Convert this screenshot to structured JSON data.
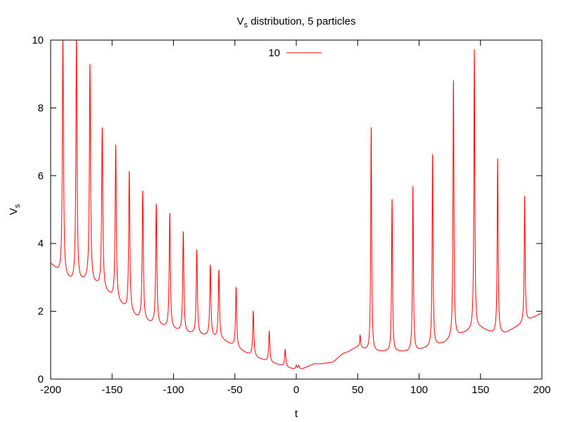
{
  "chart_data": {
    "type": "line",
    "title": {
      "main": "V",
      "sub": "s",
      "rest": " distribution, 5 particles"
    },
    "xlabel": "t",
    "ylabel": {
      "main": "V",
      "sub": "s"
    },
    "xlim": [
      -200,
      200
    ],
    "ylim": [
      0,
      10
    ],
    "xticks": [
      -200,
      -150,
      -100,
      -50,
      0,
      50,
      100,
      150,
      200
    ],
    "yticks": [
      0,
      2,
      4,
      6,
      8,
      10
    ],
    "grid": false,
    "legend_position": "top-center",
    "series": [
      {
        "name": "10",
        "color": "#ff0000",
        "background": [
          [
            -200,
            3.4
          ],
          [
            -190,
            3.0
          ],
          [
            -180,
            2.8
          ],
          [
            -170,
            2.9
          ],
          [
            -160,
            2.7
          ],
          [
            -150,
            2.4
          ],
          [
            -140,
            2.1
          ],
          [
            -130,
            1.8
          ],
          [
            -120,
            1.65
          ],
          [
            -110,
            1.55
          ],
          [
            -100,
            1.45
          ],
          [
            -90,
            1.35
          ],
          [
            -80,
            1.3
          ],
          [
            -70,
            1.25
          ],
          [
            -60,
            1.15
          ],
          [
            -50,
            0.95
          ],
          [
            -40,
            0.75
          ],
          [
            -30,
            0.6
          ],
          [
            -20,
            0.48
          ],
          [
            -10,
            0.38
          ],
          [
            -5,
            0.32
          ],
          [
            0,
            0.28
          ],
          [
            5,
            0.3
          ],
          [
            10,
            0.38
          ],
          [
            15,
            0.45
          ],
          [
            20,
            0.45
          ],
          [
            30,
            0.5
          ],
          [
            38,
            0.75
          ],
          [
            42,
            0.8
          ],
          [
            50,
            0.95
          ],
          [
            60,
            0.8
          ],
          [
            70,
            0.8
          ],
          [
            80,
            0.8
          ],
          [
            90,
            0.8
          ],
          [
            100,
            0.85
          ],
          [
            110,
            0.95
          ],
          [
            120,
            1.05
          ],
          [
            130,
            1.25
          ],
          [
            140,
            1.4
          ],
          [
            150,
            1.5
          ],
          [
            160,
            1.35
          ],
          [
            170,
            1.35
          ],
          [
            180,
            1.55
          ],
          [
            190,
            1.75
          ],
          [
            200,
            1.95
          ]
        ],
        "peaks": [
          {
            "x": -190,
            "y": 10.0
          },
          {
            "x": -179,
            "y": 10.0
          },
          {
            "x": -168,
            "y": 9.25
          },
          {
            "x": -158,
            "y": 7.38
          },
          {
            "x": -147,
            "y": 6.88
          },
          {
            "x": -136,
            "y": 6.1
          },
          {
            "x": -125,
            "y": 5.53
          },
          {
            "x": -114,
            "y": 5.14
          },
          {
            "x": -103,
            "y": 4.87
          },
          {
            "x": -92,
            "y": 4.33
          },
          {
            "x": -81,
            "y": 3.8
          },
          {
            "x": -70,
            "y": 3.35
          },
          {
            "x": -63,
            "y": 3.2
          },
          {
            "x": -49,
            "y": 2.7
          },
          {
            "x": -35,
            "y": 2.0
          },
          {
            "x": -22,
            "y": 1.4
          },
          {
            "x": -9,
            "y": 0.87
          },
          {
            "x": 0,
            "y": 0.4
          },
          {
            "x": 2,
            "y": 0.4
          },
          {
            "x": 52,
            "y": 1.28
          },
          {
            "x": 61,
            "y": 7.42
          },
          {
            "x": 78,
            "y": 5.3
          },
          {
            "x": 95,
            "y": 5.68
          },
          {
            "x": 111,
            "y": 6.62
          },
          {
            "x": 128,
            "y": 8.8
          },
          {
            "x": 145,
            "y": 9.72
          },
          {
            "x": 164,
            "y": 6.5
          },
          {
            "x": 186,
            "y": 5.4
          }
        ]
      }
    ]
  }
}
